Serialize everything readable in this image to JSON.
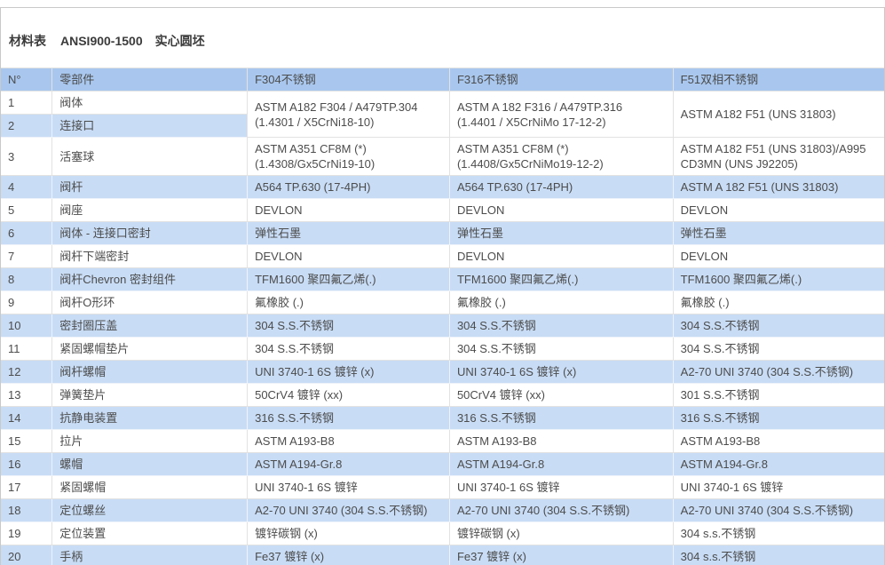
{
  "title": {
    "label": "材料表",
    "code": "ANSI900-1500",
    "spec": "实心圆坯"
  },
  "colors": {
    "header_bg": "#a9c7ee",
    "row_alt_bg": "#c8dcf5",
    "text": "#4c4c4c",
    "border": "#e2e2e2",
    "outer_border": "#c9c9c9"
  },
  "table": {
    "columns": [
      "N°",
      "零部件",
      "F304不锈钢",
      "F316不锈钢",
      "F51双相不锈钢"
    ],
    "rows": [
      {
        "n": "1",
        "part": "阀体",
        "rowspan": 2,
        "materials": [
          "ASTM A182 F304 / A479TP.304\n(1.4301 / X5CrNi18-10)",
          "ASTM A 182 F316 / A479TP.316\n(1.4401 / X5CrNiMo 17-12-2)",
          "ASTM A182 F51 (UNS 31803)"
        ]
      },
      {
        "n": "2",
        "part": "连接口",
        "materials": null
      },
      {
        "n": "3",
        "part": "活塞球",
        "materials": [
          "ASTM A351 CF8M (*)\n(1.4308/Gx5CrNi19-10)",
          "ASTM A351 CF8M (*)\n(1.4408/Gx5CrNiMo19-12-2)",
          "ASTM A182 F51 (UNS 31803)/A995\nCD3MN (UNS J92205)"
        ]
      },
      {
        "n": "4",
        "part": "阀杆",
        "materials": [
          "A564 TP.630 (17-4PH)",
          "A564 TP.630 (17-4PH)",
          "ASTM A 182 F51 (UNS 31803)"
        ]
      },
      {
        "n": "5",
        "part": "阀座",
        "materials": [
          "DEVLON",
          "DEVLON",
          "DEVLON"
        ]
      },
      {
        "n": "6",
        "part": "阀体 - 连接口密封",
        "materials": [
          "弹性石墨",
          "弹性石墨",
          "弹性石墨"
        ]
      },
      {
        "n": "7",
        "part": "阀杆下端密封",
        "materials": [
          "DEVLON",
          "DEVLON",
          "DEVLON"
        ]
      },
      {
        "n": "8",
        "part": "阀杆Chevron 密封组件",
        "materials": [
          "TFM1600 聚四氟乙烯(.)",
          "TFM1600 聚四氟乙烯(.)",
          "TFM1600 聚四氟乙烯(.)"
        ]
      },
      {
        "n": "9",
        "part": "阀杆O形环",
        "materials": [
          "氟橡胶 (.)",
          "氟橡胶 (.)",
          "氟橡胶 (.)"
        ]
      },
      {
        "n": "10",
        "part": "密封圈压盖",
        "materials": [
          "304 S.S.不锈钢",
          "304 S.S.不锈钢",
          "304 S.S.不锈钢"
        ]
      },
      {
        "n": "11",
        "part": "紧固螺帽垫片",
        "materials": [
          "304 S.S.不锈钢",
          "304 S.S.不锈钢",
          "304 S.S.不锈钢"
        ]
      },
      {
        "n": "12",
        "part": "阀杆螺帽",
        "materials": [
          "UNI 3740-1 6S 镀锌 (x)",
          "UNI 3740-1 6S 镀锌 (x)",
          "A2-70 UNI 3740 (304 S.S.不锈钢)"
        ]
      },
      {
        "n": "13",
        "part": "弹簧垫片",
        "materials": [
          "50CrV4 镀锌 (xx)",
          "50CrV4 镀锌 (xx)",
          "301 S.S.不锈钢"
        ]
      },
      {
        "n": "14",
        "part": "抗静电装置",
        "materials": [
          "316 S.S.不锈钢",
          "316 S.S.不锈钢",
          "316 S.S.不锈钢"
        ]
      },
      {
        "n": "15",
        "part": "拉片",
        "materials": [
          "ASTM A193-B8",
          "ASTM A193-B8",
          "ASTM A193-B8"
        ]
      },
      {
        "n": "16",
        "part": "螺帽",
        "materials": [
          "ASTM A194-Gr.8",
          "ASTM A194-Gr.8",
          "ASTM A194-Gr.8"
        ]
      },
      {
        "n": "17",
        "part": "紧固螺帽",
        "materials": [
          "UNI 3740-1 6S 镀锌",
          "UNI 3740-1 6S 镀锌",
          "UNI 3740-1 6S 镀锌"
        ]
      },
      {
        "n": "18",
        "part": "定位螺丝",
        "materials": [
          "A2-70 UNI 3740 (304 S.S.不锈钢)",
          "A2-70 UNI 3740 (304 S.S.不锈钢)",
          "A2-70 UNI 3740 (304 S.S.不锈钢)"
        ]
      },
      {
        "n": "19",
        "part": "定位装置",
        "materials": [
          "镀锌碳钢 (x)",
          "镀锌碳钢 (x)",
          "304 s.s.不锈钢"
        ]
      },
      {
        "n": "20",
        "part": "手柄",
        "materials": [
          "Fe37 镀锌 (x)",
          "Fe37 镀锌 (x)",
          "304 s.s.不锈钢"
        ]
      }
    ]
  }
}
